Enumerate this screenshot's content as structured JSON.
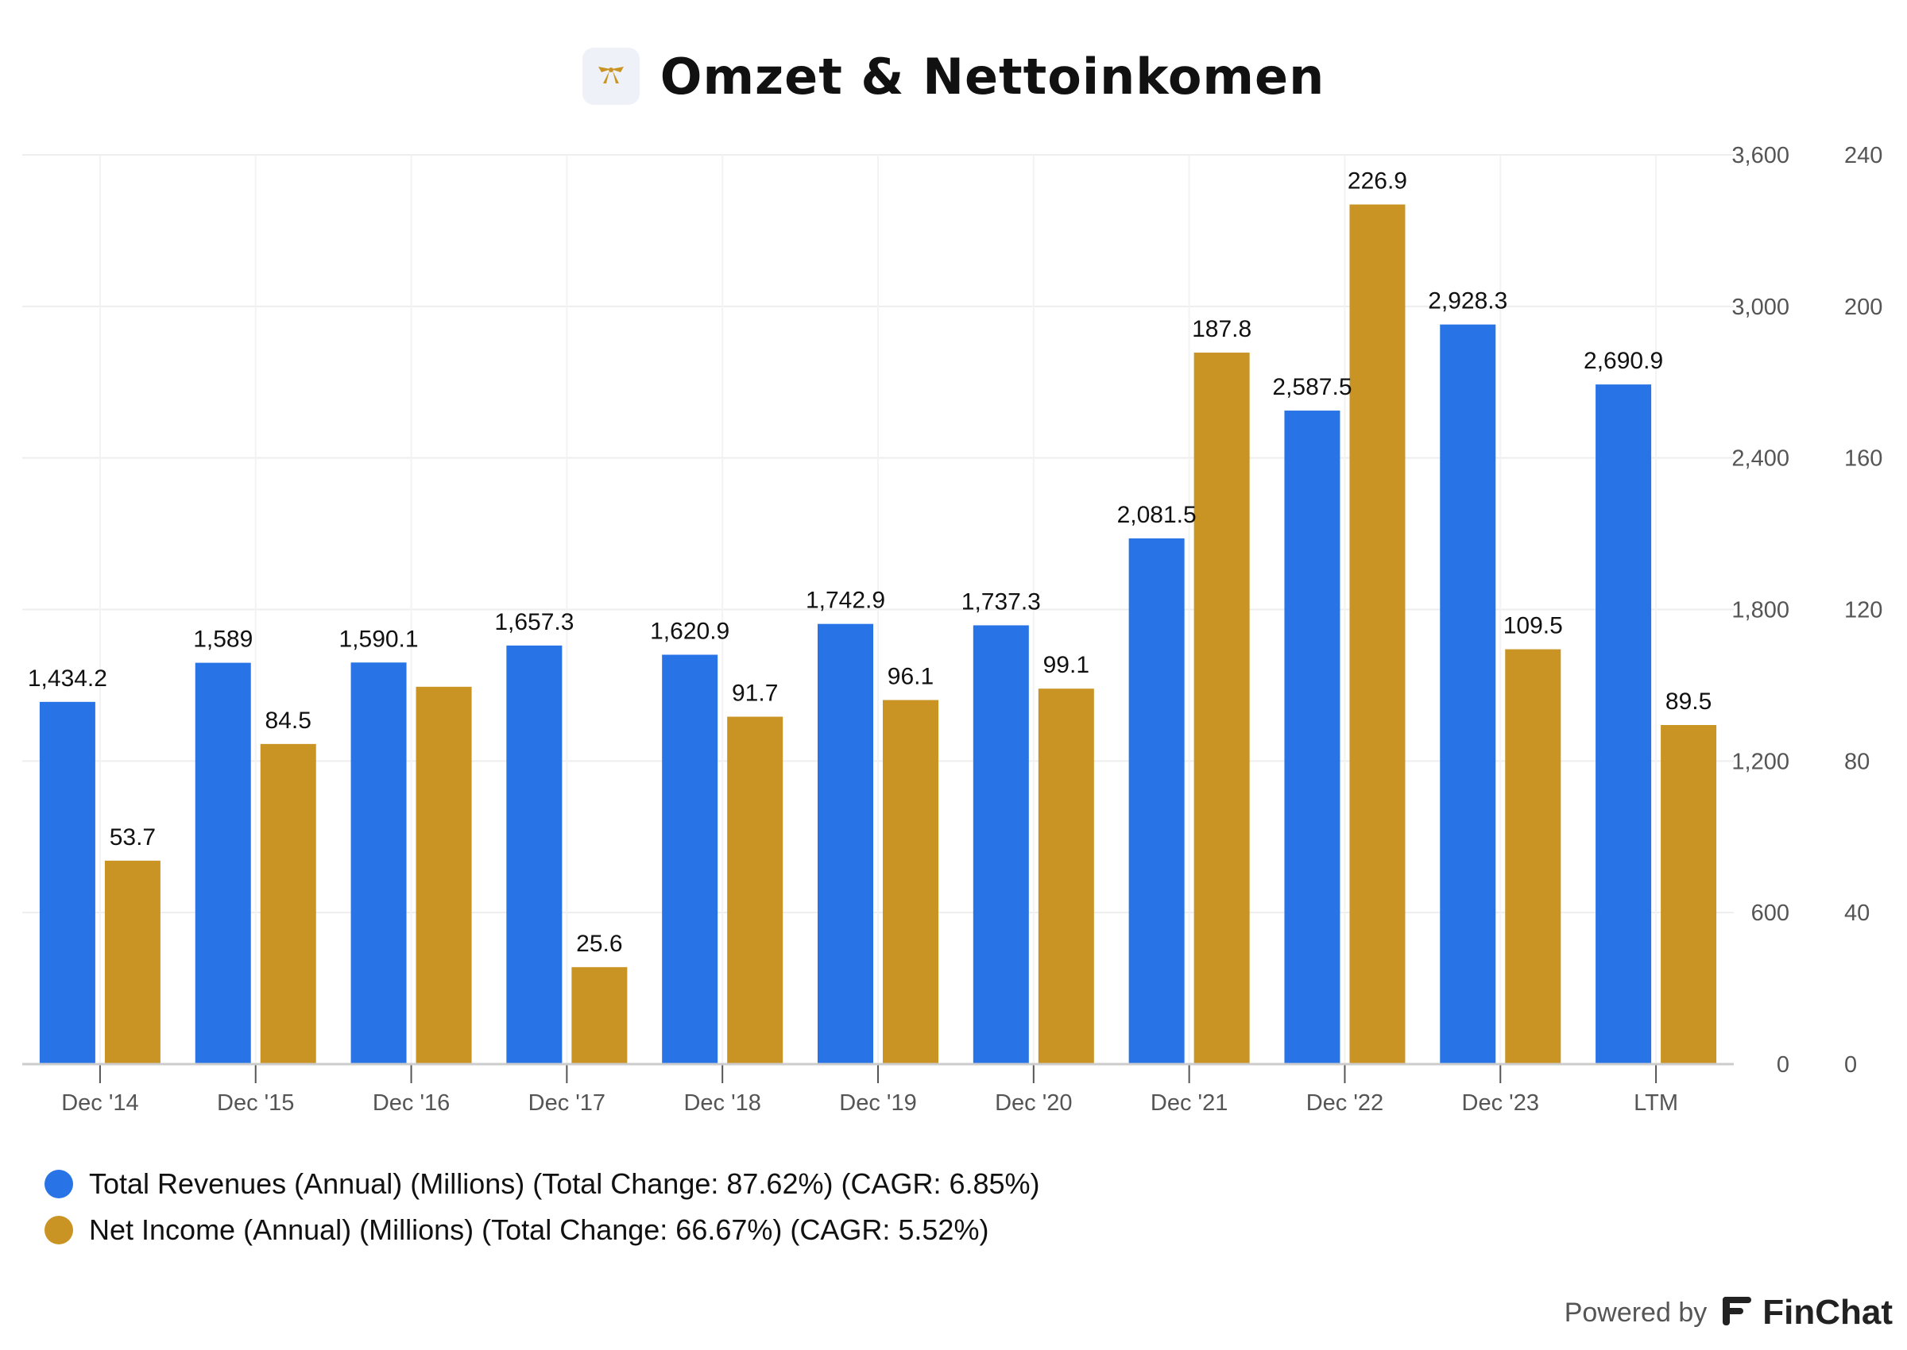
{
  "title": "Omzet & Nettoinkomen",
  "colors": {
    "revenue": "#2874e6",
    "net_income": "#c99424",
    "grid": "#eeeeee",
    "axis": "#cccccc"
  },
  "chart_data": {
    "type": "bar",
    "categories": [
      "Dec '14",
      "Dec '15",
      "Dec '16",
      "Dec '17",
      "Dec '18",
      "Dec '19",
      "Dec '20",
      "Dec '21",
      "Dec '22",
      "Dec '23",
      "LTM"
    ],
    "series": [
      {
        "name": "Total Revenues (Annual) (Millions) (Total Change: 87.62%) (CAGR: 6.85%)",
        "axis": "left",
        "values": [
          1434.2,
          1589,
          1590.1,
          1657.3,
          1620.9,
          1742.9,
          1737.3,
          2081.5,
          2587.5,
          2928.3,
          2690.9
        ],
        "labels": [
          "1,434.2",
          "1,589",
          "1,590.1",
          "1,657.3",
          "1,620.9",
          "1,742.9",
          "1,737.3",
          "2,081.5",
          "2,587.5",
          "2,928.3",
          "2,690.9"
        ]
      },
      {
        "name": "Net Income (Annual) (Millions) (Total Change: 66.67%) (CAGR: 5.52%)",
        "axis": "right",
        "values": [
          53.7,
          84.5,
          99.6,
          25.6,
          91.7,
          96.1,
          99.1,
          187.8,
          226.9,
          109.5,
          89.5
        ],
        "labels": [
          "53.7",
          "84.5",
          "",
          "25.6",
          "91.7",
          "96.1",
          "99.1",
          "187.8",
          "226.9",
          "109.5",
          "89.5"
        ]
      }
    ],
    "y_left": {
      "ylim": [
        0,
        3600
      ],
      "ticks": [
        "0",
        "600",
        "1,200",
        "1,800",
        "2,400",
        "3,000",
        "3,600"
      ]
    },
    "y_right": {
      "ylim": [
        0,
        240
      ],
      "ticks": [
        "0",
        "40",
        "80",
        "120",
        "160",
        "200",
        "240"
      ]
    },
    "grid": true,
    "legend_position": "bottom-left"
  },
  "footer": {
    "powered_by": "Powered by",
    "brand": "FinChat"
  }
}
